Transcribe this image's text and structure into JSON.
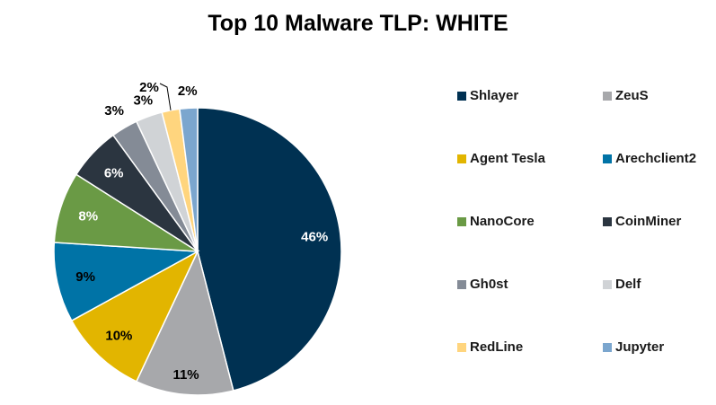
{
  "chart_data": {
    "type": "pie",
    "title": "Top 10 Malware TLP: WHITE",
    "legend_position": "right",
    "start": "12 o'clock, clockwise",
    "slices": [
      {
        "name": "Shlayer",
        "value": 46,
        "label": "46%",
        "color": "#003152"
      },
      {
        "name": "ZeuS",
        "value": 11,
        "label": "11%",
        "color": "#A7A8AB"
      },
      {
        "name": "Agent Tesla",
        "value": 10,
        "label": "10%",
        "color": "#E2B500"
      },
      {
        "name": "Arechclient2",
        "value": 9,
        "label": "9%",
        "color": "#0073A6"
      },
      {
        "name": "NanoCore",
        "value": 8,
        "label": "8%",
        "color": "#6A9A45"
      },
      {
        "name": "CoinMiner",
        "value": 6,
        "label": "6%",
        "color": "#2B3540"
      },
      {
        "name": "Gh0st",
        "value": 3,
        "label": "3%",
        "color": "#848B96"
      },
      {
        "name": "Delf",
        "value": 3,
        "label": "3%",
        "color": "#D0D3D6"
      },
      {
        "name": "RedLine",
        "value": 2,
        "label": "2%",
        "color": "#FFD57E"
      },
      {
        "name": "Jupyter",
        "value": 2,
        "label": "2%",
        "color": "#7BA6CE"
      }
    ]
  }
}
